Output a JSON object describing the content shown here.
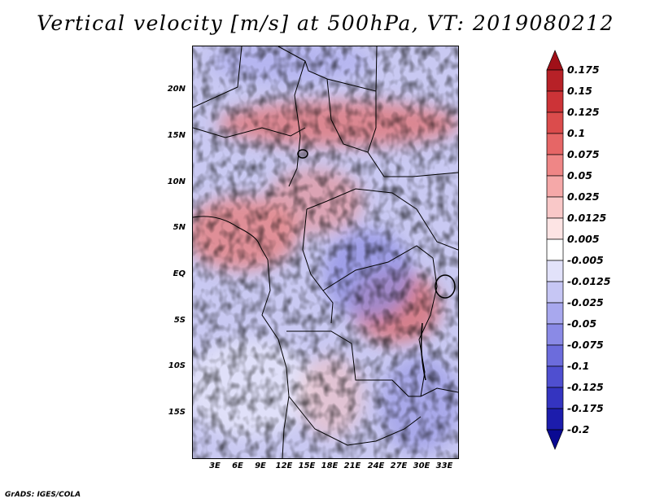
{
  "title": "Vertical velocity [m/s] at 500hPa, VT: 2019080212",
  "footer": "GrADS: IGES/COLA",
  "lat_labels": [
    "20N",
    "15N",
    "10N",
    "5N",
    "EQ",
    "5S",
    "10S",
    "15S"
  ],
  "lon_labels": [
    "3E",
    "6E",
    "9E",
    "12E",
    "15E",
    "18E",
    "21E",
    "24E",
    "27E",
    "30E",
    "33E"
  ],
  "colorbar": {
    "levels": [
      "0.175",
      "0.15",
      "0.125",
      "0.1",
      "0.075",
      "0.05",
      "0.025",
      "0.0125",
      "0.005",
      "-0.005",
      "-0.0125",
      "-0.025",
      "-0.05",
      "-0.075",
      "-0.1",
      "-0.125",
      "-0.175",
      "-0.2"
    ],
    "colors": [
      "#a01018",
      "#b72127",
      "#cc3337",
      "#db4c4c",
      "#e66666",
      "#ef8686",
      "#f5a8a8",
      "#f9c8c8",
      "#fde4e4",
      "#ffffff",
      "#e2e2fa",
      "#c6c6f4",
      "#a8a8ee",
      "#8a8ae6",
      "#6c6cdc",
      "#4f4fd0",
      "#3434c0",
      "#1c1cac",
      "#0a0a92"
    ]
  }
}
